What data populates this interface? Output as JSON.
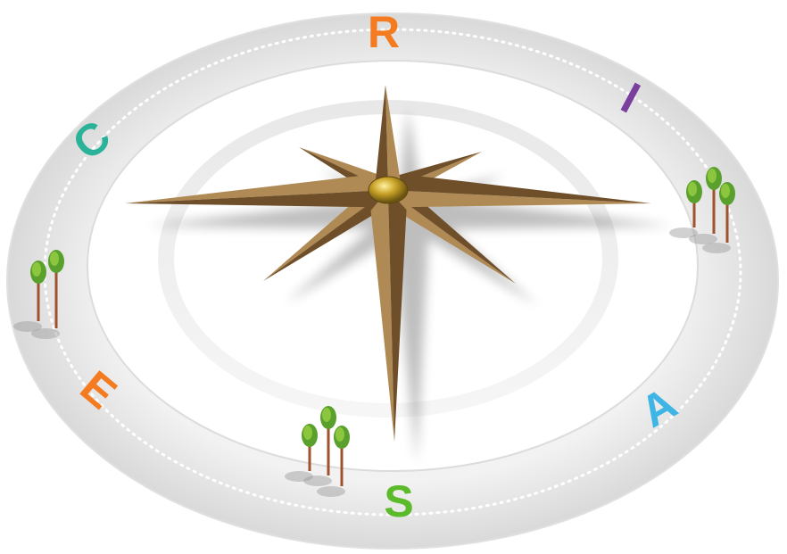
{
  "letters": [
    "R",
    "I",
    "A",
    "S",
    "E",
    "C"
  ]
}
